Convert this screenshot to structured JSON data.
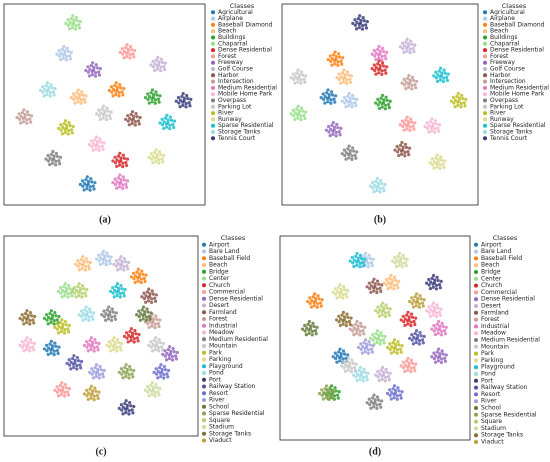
{
  "chart_data": [
    {
      "type": "scatter",
      "caption": "(a)",
      "legend_title": "Classes",
      "xlim": [
        0,
        100
      ],
      "ylim": [
        0,
        100
      ],
      "series": [
        {
          "name": "Agricultural",
          "color": "#1f77b4",
          "x": [
            41
          ],
          "values": [
            6
          ]
        },
        {
          "name": "Airplane",
          "color": "#aec7e8",
          "x": [
            28
          ],
          "values": [
            78
          ]
        },
        {
          "name": "Baseball Diamond",
          "color": "#ff7f0e",
          "x": [
            57
          ],
          "values": [
            58
          ]
        },
        {
          "name": "Beach",
          "color": "#ffbb78",
          "x": [
            36
          ],
          "values": [
            54
          ]
        },
        {
          "name": "Buildings",
          "color": "#2ca02c",
          "x": [
            77
          ],
          "values": [
            54
          ]
        },
        {
          "name": "Chaparral",
          "color": "#98df8a",
          "x": [
            33
          ],
          "values": [
            95
          ]
        },
        {
          "name": "Dense Residential",
          "color": "#d62728",
          "x": [
            59
          ],
          "values": [
            19
          ]
        },
        {
          "name": "Forest",
          "color": "#ff9896",
          "x": [
            63
          ],
          "values": [
            79
          ]
        },
        {
          "name": "Freeway",
          "color": "#9467bd",
          "x": [
            44
          ],
          "values": [
            69
          ]
        },
        {
          "name": "Golf Course",
          "color": "#c5b0d5",
          "x": [
            80
          ],
          "values": [
            72
          ]
        },
        {
          "name": "Harbor",
          "color": "#8c564b",
          "x": [
            66
          ],
          "values": [
            42
          ]
        },
        {
          "name": "Intersection",
          "color": "#c49c94",
          "x": [
            6
          ],
          "values": [
            43
          ]
        },
        {
          "name": "Medium Residential",
          "color": "#e377c2",
          "x": [
            59
          ],
          "values": [
            7
          ]
        },
        {
          "name": "Mobile Home Park",
          "color": "#f7b6d2",
          "x": [
            46
          ],
          "values": [
            28
          ]
        },
        {
          "name": "Overpass",
          "color": "#7f7f7f",
          "x": [
            22
          ],
          "values": [
            20
          ]
        },
        {
          "name": "Parking Lot",
          "color": "#c7c7c7",
          "x": [
            50
          ],
          "values": [
            45
          ]
        },
        {
          "name": "River",
          "color": "#bcbd22",
          "x": [
            29
          ],
          "values": [
            37
          ]
        },
        {
          "name": "Runway",
          "color": "#dbdb8d",
          "x": [
            79
          ],
          "values": [
            21
          ]
        },
        {
          "name": "Sparse Residential",
          "color": "#17becf",
          "x": [
            85
          ],
          "values": [
            40
          ]
        },
        {
          "name": "Storage Tanks",
          "color": "#9edae5",
          "x": [
            19
          ],
          "values": [
            58
          ]
        },
        {
          "name": "Tennis Court",
          "color": "#393b79",
          "x": [
            94
          ],
          "values": [
            52
          ]
        }
      ]
    },
    {
      "type": "scatter",
      "caption": "(b)",
      "legend_title": "Classes",
      "xlim": [
        0,
        100
      ],
      "ylim": [
        0,
        100
      ],
      "series": [
        {
          "name": "Agricultural",
          "color": "#1f77b4",
          "x": [
            21
          ],
          "values": [
            54
          ]
        },
        {
          "name": "Airplane",
          "color": "#aec7e8",
          "x": [
            33
          ],
          "values": [
            52
          ]
        },
        {
          "name": "Baseball Diamond",
          "color": "#ff7f0e",
          "x": [
            25
          ],
          "values": [
            75
          ]
        },
        {
          "name": "Beach",
          "color": "#ffbb78",
          "x": [
            30
          ],
          "values": [
            65
          ]
        },
        {
          "name": "Buildings",
          "color": "#2ca02c",
          "x": [
            52
          ],
          "values": [
            51
          ]
        },
        {
          "name": "Chaparral",
          "color": "#98df8a",
          "x": [
            4
          ],
          "values": [
            45
          ]
        },
        {
          "name": "Dense Residential",
          "color": "#d62728",
          "x": [
            50
          ],
          "values": [
            70
          ]
        },
        {
          "name": "Forest",
          "color": "#ff9896",
          "x": [
            66
          ],
          "values": [
            39
          ]
        },
        {
          "name": "Freeway",
          "color": "#9467bd",
          "x": [
            24
          ],
          "values": [
            36
          ]
        },
        {
          "name": "Golf Course",
          "color": "#c5b0d5",
          "x": [
            66
          ],
          "values": [
            82
          ]
        },
        {
          "name": "Harbor",
          "color": "#8c564b",
          "x": [
            63
          ],
          "values": [
            25
          ]
        },
        {
          "name": "Intersection",
          "color": "#c49c94",
          "x": [
            67
          ],
          "values": [
            62
          ]
        },
        {
          "name": "Medium Residential",
          "color": "#e377c2",
          "x": [
            50
          ],
          "values": [
            78
          ]
        },
        {
          "name": "Mobile Home Park",
          "color": "#f7b6d2",
          "x": [
            80
          ],
          "values": [
            38
          ]
        },
        {
          "name": "Overpass",
          "color": "#7f7f7f",
          "x": [
            33
          ],
          "values": [
            23
          ]
        },
        {
          "name": "Parking Lot",
          "color": "#c7c7c7",
          "x": [
            4
          ],
          "values": [
            65
          ]
        },
        {
          "name": "River",
          "color": "#bcbd22",
          "x": [
            95
          ],
          "values": [
            52
          ]
        },
        {
          "name": "Runway",
          "color": "#dbdb8d",
          "x": [
            83
          ],
          "values": [
            18
          ]
        },
        {
          "name": "Sparse Residential",
          "color": "#17becf",
          "x": [
            85
          ],
          "values": [
            66
          ]
        },
        {
          "name": "Storage Tanks",
          "color": "#9edae5",
          "x": [
            49
          ],
          "values": [
            5
          ]
        },
        {
          "name": "Tennis Court",
          "color": "#393b79",
          "x": [
            39
          ],
          "values": [
            95
          ]
        }
      ]
    },
    {
      "type": "scatter",
      "caption": "(c)",
      "legend_title": "Classes",
      "xlim": [
        0,
        100
      ],
      "ylim": [
        0,
        100
      ],
      "series": [
        {
          "name": "Airport",
          "color": "#1f77b4",
          "x": [
            22
          ],
          "values": [
            43
          ]
        },
        {
          "name": "Bare Land",
          "color": "#aec7e8",
          "x": [
            52
          ],
          "values": [
            93
          ]
        },
        {
          "name": "Baseball Field",
          "color": "#ff7f0e",
          "x": [
            72
          ],
          "values": [
            83
          ]
        },
        {
          "name": "Beach",
          "color": "#ffbb78",
          "x": [
            40
          ],
          "values": [
            90
          ]
        },
        {
          "name": "Bridge",
          "color": "#2ca02c",
          "x": [
            22
          ],
          "values": [
            60
          ]
        },
        {
          "name": "Center",
          "color": "#98df8a",
          "x": [
            30
          ],
          "values": [
            75
          ]
        },
        {
          "name": "Church",
          "color": "#d62728",
          "x": [
            68
          ],
          "values": [
            50
          ]
        },
        {
          "name": "Commercial",
          "color": "#ff9896",
          "x": [
            28
          ],
          "values": [
            20
          ]
        },
        {
          "name": "Dense Residential",
          "color": "#9467bd",
          "x": [
            90
          ],
          "values": [
            40
          ]
        },
        {
          "name": "Desert",
          "color": "#c5b0d5",
          "x": [
            62
          ],
          "values": [
            90
          ]
        },
        {
          "name": "Farmland",
          "color": "#8c564b",
          "x": [
            78
          ],
          "values": [
            72
          ]
        },
        {
          "name": "Forest",
          "color": "#c49c94",
          "x": [
            80
          ],
          "values": [
            58
          ]
        },
        {
          "name": "Industrial",
          "color": "#e377c2",
          "x": [
            45
          ],
          "values": [
            45
          ]
        },
        {
          "name": "Meadow",
          "color": "#f7b6d2",
          "x": [
            8
          ],
          "values": [
            45
          ]
        },
        {
          "name": "Medium Residential",
          "color": "#7f7f7f",
          "x": [
            55
          ],
          "values": [
            62
          ]
        },
        {
          "name": "Mountain",
          "color": "#c7c7c7",
          "x": [
            82
          ],
          "values": [
            45
          ]
        },
        {
          "name": "Park",
          "color": "#bcbd22",
          "x": [
            28
          ],
          "values": [
            55
          ]
        },
        {
          "name": "Parking",
          "color": "#dbdb8d",
          "x": [
            58
          ],
          "values": [
            45
          ]
        },
        {
          "name": "Playground",
          "color": "#17becf",
          "x": [
            60
          ],
          "values": [
            75
          ]
        },
        {
          "name": "Pond",
          "color": "#9edae5",
          "x": [
            42
          ],
          "values": [
            62
          ]
        },
        {
          "name": "Port",
          "color": "#393b79",
          "x": [
            65
          ],
          "values": [
            10
          ]
        },
        {
          "name": "Railway Station",
          "color": "#5254a3",
          "x": [
            35
          ],
          "values": [
            35
          ]
        },
        {
          "name": "Resort",
          "color": "#6b6ecf",
          "x": [
            85
          ],
          "values": [
            30
          ]
        },
        {
          "name": "River",
          "color": "#9c9ede",
          "x": [
            48
          ],
          "values": [
            30
          ]
        },
        {
          "name": "School",
          "color": "#637939",
          "x": [
            75
          ],
          "values": [
            62
          ]
        },
        {
          "name": "Sparse Residential",
          "color": "#8ca252",
          "x": [
            65
          ],
          "values": [
            30
          ]
        },
        {
          "name": "Square",
          "color": "#b5cf6b",
          "x": [
            38
          ],
          "values": [
            75
          ]
        },
        {
          "name": "Stadium",
          "color": "#cedb9c",
          "x": [
            80
          ],
          "values": [
            20
          ]
        },
        {
          "name": "Storage Tanks",
          "color": "#8c6d31",
          "x": [
            8
          ],
          "values": [
            60
          ]
        },
        {
          "name": "Viaduct",
          "color": "#bd9e39",
          "x": [
            45
          ],
          "values": [
            18
          ]
        }
      ]
    },
    {
      "type": "scatter",
      "caption": "(d)",
      "legend_title": "Classes",
      "xlim": [
        0,
        100
      ],
      "ylim": [
        0,
        100
      ],
      "series": [
        {
          "name": "Airport",
          "color": "#1f77b4",
          "x": [
            30
          ],
          "values": [
            40
          ]
        },
        {
          "name": "Bare Land",
          "color": "#aec7e8",
          "x": [
            45
          ],
          "values": [
            92
          ]
        },
        {
          "name": "Baseball Field",
          "color": "#ff7f0e",
          "x": [
            15
          ],
          "values": [
            70
          ]
        },
        {
          "name": "Beach",
          "color": "#ffbb78",
          "x": [
            60
          ],
          "values": [
            80
          ]
        },
        {
          "name": "Bridge",
          "color": "#2ca02c",
          "x": [
            25
          ],
          "values": [
            20
          ]
        },
        {
          "name": "Center",
          "color": "#98df8a",
          "x": [
            52
          ],
          "values": [
            50
          ]
        },
        {
          "name": "Church",
          "color": "#d62728",
          "x": [
            70
          ],
          "values": [
            60
          ]
        },
        {
          "name": "Commercial",
          "color": "#ff9896",
          "x": [
            70
          ],
          "values": [
            35
          ]
        },
        {
          "name": "Dense Residential",
          "color": "#9467bd",
          "x": [
            88
          ],
          "values": [
            40
          ]
        },
        {
          "name": "Desert",
          "color": "#c5b0d5",
          "x": [
            55
          ],
          "values": [
            30
          ]
        },
        {
          "name": "Farmland",
          "color": "#8c564b",
          "x": [
            50
          ],
          "values": [
            78
          ]
        },
        {
          "name": "Forest",
          "color": "#c49c94",
          "x": [
            40
          ],
          "values": [
            55
          ]
        },
        {
          "name": "Industrial",
          "color": "#e377c2",
          "x": [
            88
          ],
          "values": [
            55
          ]
        },
        {
          "name": "Meadow",
          "color": "#f7b6d2",
          "x": [
            85
          ],
          "values": [
            65
          ]
        },
        {
          "name": "Medium Residential",
          "color": "#7f7f7f",
          "x": [
            50
          ],
          "values": [
            15
          ]
        },
        {
          "name": "Mountain",
          "color": "#c7c7c7",
          "x": [
            35
          ],
          "values": [
            35
          ]
        },
        {
          "name": "Park",
          "color": "#bcbd22",
          "x": [
            62
          ],
          "values": [
            45
          ]
        },
        {
          "name": "Parking",
          "color": "#dbdb8d",
          "x": [
            30
          ],
          "values": [
            75
          ]
        },
        {
          "name": "Playground",
          "color": "#17becf",
          "x": [
            40
          ],
          "values": [
            92
          ]
        },
        {
          "name": "Pond",
          "color": "#9edae5",
          "x": [
            42
          ],
          "values": [
            30
          ]
        },
        {
          "name": "Port",
          "color": "#393b79",
          "x": [
            85
          ],
          "values": [
            80
          ]
        },
        {
          "name": "Railway Station",
          "color": "#5254a3",
          "x": [
            75
          ],
          "values": [
            50
          ]
        },
        {
          "name": "Resort",
          "color": "#6b6ecf",
          "x": [
            62
          ],
          "values": [
            20
          ]
        },
        {
          "name": "River",
          "color": "#9c9ede",
          "x": [
            45
          ],
          "values": [
            45
          ]
        },
        {
          "name": "School",
          "color": "#637939",
          "x": [
            12
          ],
          "values": [
            55
          ]
        },
        {
          "name": "Sparse Residential",
          "color": "#8ca252",
          "x": [
            22
          ],
          "values": [
            20
          ]
        },
        {
          "name": "Square",
          "color": "#b5cf6b",
          "x": [
            55
          ],
          "values": [
            65
          ]
        },
        {
          "name": "Stadium",
          "color": "#cedb9c",
          "x": [
            65
          ],
          "values": [
            92
          ]
        },
        {
          "name": "Storage Tanks",
          "color": "#8c6d31",
          "x": [
            32
          ],
          "values": [
            60
          ]
        },
        {
          "name": "Viaduct",
          "color": "#bd9e39",
          "x": [
            75
          ],
          "values": [
            70
          ]
        }
      ]
    }
  ]
}
